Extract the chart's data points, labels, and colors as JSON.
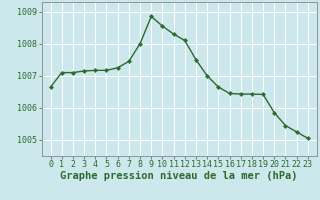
{
  "x": [
    0,
    1,
    2,
    3,
    4,
    5,
    6,
    7,
    8,
    9,
    10,
    11,
    12,
    13,
    14,
    15,
    16,
    17,
    18,
    19,
    20,
    21,
    22,
    23
  ],
  "y": [
    1006.65,
    1007.1,
    1007.1,
    1007.15,
    1007.17,
    1007.17,
    1007.25,
    1007.45,
    1008.0,
    1008.85,
    1008.55,
    1008.3,
    1008.1,
    1007.5,
    1007.0,
    1006.65,
    1006.45,
    1006.43,
    1006.43,
    1006.42,
    1005.85,
    1005.45,
    1005.25,
    1005.05
  ],
  "line_color": "#2d6a2d",
  "marker": "D",
  "marker_size": 2.2,
  "linewidth": 1.0,
  "bg_color": "#cce8ec",
  "grid_color": "#ffffff",
  "tick_color": "#2d6a2d",
  "xlabel": "Graphe pression niveau de la mer (hPa)",
  "xlabel_color": "#2d6a2d",
  "xlabel_fontsize": 7.5,
  "tick_fontsize": 6.0,
  "ylim": [
    1004.5,
    1009.3
  ],
  "yticks": [
    1005,
    1006,
    1007,
    1008,
    1009
  ],
  "xticks": [
    0,
    1,
    2,
    3,
    4,
    5,
    6,
    7,
    8,
    9,
    10,
    11,
    12,
    13,
    14,
    15,
    16,
    17,
    18,
    19,
    20,
    21,
    22,
    23
  ],
  "spine_color": "#888888"
}
